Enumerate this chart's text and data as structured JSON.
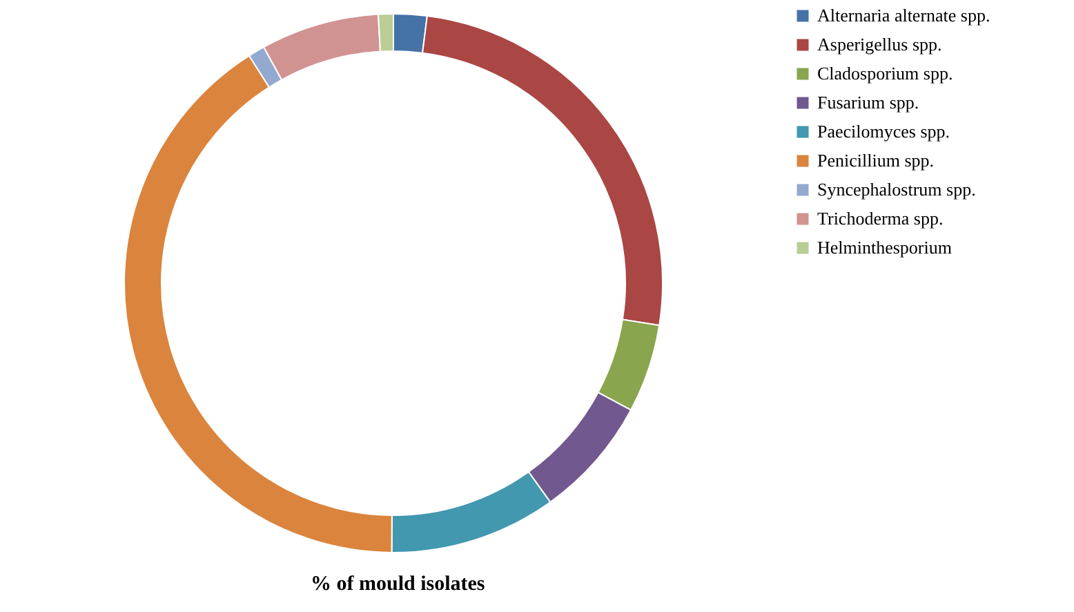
{
  "chart_data": {
    "type": "donut",
    "title": "% of mould isolates",
    "categories": [
      "Alternaria alternate spp.",
      "Asperigellus spp.",
      "Cladosporium spp.",
      "Fusarium spp.",
      "Paecilomyces spp.",
      "Penicillium spp.",
      "Syncephalostrum spp.",
      "Trichoderma spp.",
      "Helminthesporium"
    ],
    "values": [
      2,
      25.5,
      5.3,
      7.3,
      10,
      40.9,
      1,
      7.1,
      0.9
    ],
    "colors": [
      "#4572a7",
      "#aa4643",
      "#89a54e",
      "#71588f",
      "#4198af",
      "#db843d",
      "#93a9cf",
      "#d19392",
      "#b9cd96"
    ],
    "legend": "right"
  }
}
